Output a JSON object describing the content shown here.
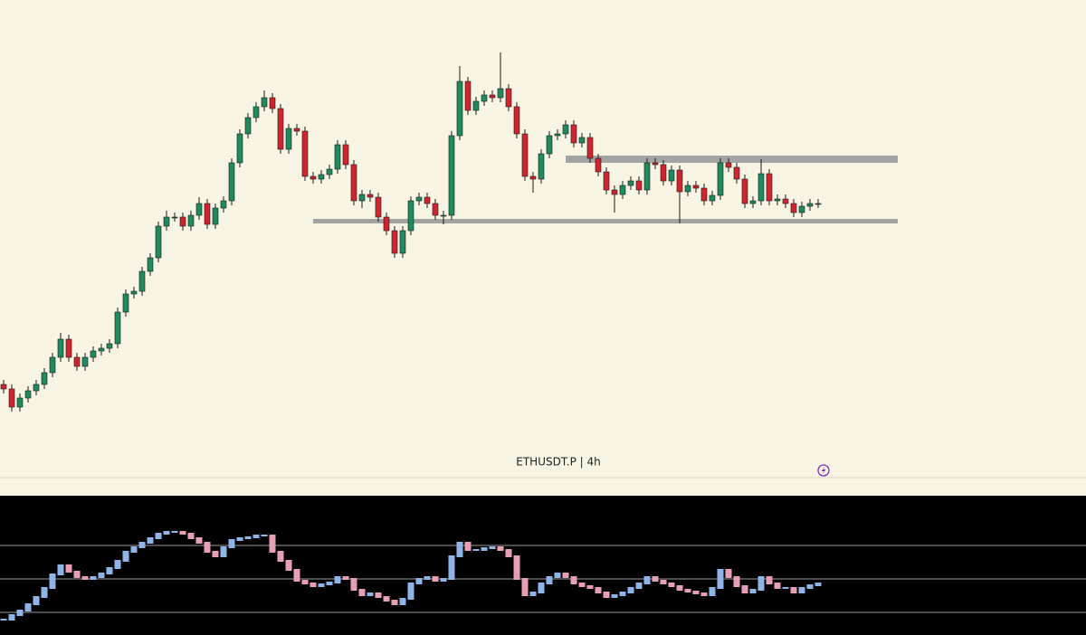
{
  "chart_data": [
    {
      "type": "candlestick",
      "title": "ETHUSDT.P | 4h",
      "ylim": [
        0,
        528
      ],
      "up_color": "#1f8a5e",
      "down_color": "#d0242e",
      "wick_color": "#1a1a1a",
      "zone_color": "#a3a3a3",
      "open": [
        103,
        98,
        78,
        88,
        96,
        103,
        116,
        133,
        153,
        133,
        123,
        133,
        140,
        143,
        148,
        183,
        203,
        206,
        228,
        243,
        278,
        288,
        288,
        278,
        290,
        303,
        280,
        298,
        306,
        348,
        380,
        398,
        410,
        420,
        408,
        363,
        386,
        383,
        333,
        330,
        335,
        341,
        368,
        346,
        306,
        313,
        310,
        288,
        273,
        248,
        273,
        306,
        310,
        303,
        290,
        290,
        378,
        438,
        406,
        416,
        423,
        420,
        430,
        410,
        380,
        333,
        330,
        358,
        378,
        380,
        390,
        370,
        376,
        353,
        338,
        318,
        313,
        323,
        328,
        318,
        348,
        346,
        328,
        340,
        316,
        323,
        320,
        306,
        312,
        348,
        343,
        330,
        303,
        306,
        336,
        306,
        308,
        303,
        293,
        300,
        303
      ],
      "high": [
        108,
        103,
        93,
        101,
        108,
        121,
        138,
        160,
        158,
        138,
        138,
        145,
        148,
        153,
        188,
        208,
        211,
        233,
        248,
        283,
        295,
        293,
        293,
        295,
        310,
        308,
        303,
        311,
        353,
        385,
        403,
        415,
        428,
        425,
        413,
        391,
        391,
        388,
        338,
        340,
        346,
        373,
        373,
        351,
        318,
        318,
        315,
        293,
        278,
        278,
        311,
        315,
        315,
        308,
        295,
        383,
        455,
        443,
        421,
        428,
        428,
        470,
        435,
        415,
        385,
        338,
        363,
        383,
        385,
        395,
        395,
        381,
        381,
        358,
        343,
        323,
        328,
        333,
        333,
        353,
        353,
        351,
        345,
        345,
        328,
        328,
        325,
        317,
        353,
        353,
        348,
        335,
        311,
        352,
        341,
        313,
        313,
        308,
        305,
        308,
        308
      ],
      "low": [
        93,
        73,
        73,
        83,
        91,
        98,
        111,
        128,
        128,
        118,
        118,
        128,
        135,
        138,
        143,
        178,
        198,
        201,
        223,
        238,
        273,
        283,
        273,
        273,
        285,
        275,
        275,
        293,
        301,
        343,
        375,
        393,
        405,
        403,
        358,
        358,
        378,
        328,
        325,
        325,
        330,
        336,
        341,
        301,
        298,
        305,
        283,
        268,
        243,
        243,
        268,
        301,
        298,
        285,
        280,
        285,
        373,
        401,
        401,
        411,
        415,
        415,
        405,
        375,
        328,
        315,
        325,
        353,
        373,
        375,
        365,
        365,
        348,
        333,
        313,
        293,
        308,
        318,
        313,
        313,
        341,
        323,
        323,
        281,
        311,
        315,
        301,
        301,
        307,
        338,
        325,
        298,
        298,
        301,
        301,
        301,
        298,
        288,
        288,
        295,
        298
      ],
      "close": [
        98,
        78,
        88,
        96,
        103,
        116,
        133,
        153,
        133,
        123,
        133,
        140,
        143,
        148,
        183,
        203,
        206,
        228,
        243,
        278,
        288,
        288,
        278,
        290,
        303,
        280,
        298,
        306,
        348,
        380,
        398,
        410,
        420,
        408,
        363,
        386,
        383,
        333,
        330,
        335,
        341,
        368,
        346,
        306,
        313,
        310,
        288,
        273,
        248,
        273,
        306,
        310,
        303,
        290,
        290,
        378,
        438,
        406,
        416,
        423,
        420,
        430,
        410,
        380,
        333,
        330,
        358,
        378,
        380,
        390,
        370,
        376,
        353,
        338,
        318,
        313,
        323,
        328,
        318,
        348,
        346,
        328,
        340,
        316,
        323,
        320,
        306,
        312,
        348,
        343,
        330,
        303,
        306,
        336,
        306,
        308,
        303,
        293,
        300,
        303,
        303
      ],
      "zones": [
        {
          "start": 69,
          "from": 348,
          "to": 356
        },
        {
          "start": 38,
          "from": 281,
          "to": 286
        }
      ]
    },
    {
      "type": "indicator",
      "ylim": [
        0,
        130
      ],
      "hlines": [
        97,
        60,
        23
      ],
      "hline_color": "#9a9a9a",
      "up_color": "#8fb4e8",
      "down_color": "#e89fb6",
      "values": [
        15,
        20,
        25,
        32,
        40,
        50,
        65,
        75,
        68,
        62,
        60,
        62,
        66,
        72,
        80,
        90,
        95,
        100,
        105,
        110,
        112,
        112,
        110,
        105,
        100,
        90,
        85,
        95,
        103,
        105,
        106,
        108,
        108,
        90,
        80,
        70,
        58,
        55,
        52,
        54,
        56,
        62,
        60,
        48,
        42,
        44,
        40,
        36,
        32,
        38,
        55,
        60,
        62,
        58,
        60,
        85,
        100,
        92,
        92,
        94,
        95,
        92,
        85,
        60,
        42,
        45,
        55,
        62,
        66,
        62,
        55,
        52,
        50,
        45,
        40,
        42,
        45,
        50,
        55,
        62,
        58,
        55,
        52,
        48,
        46,
        44,
        42,
        50,
        70,
        62,
        52,
        45,
        48,
        62,
        55,
        50,
        50,
        45,
        50,
        53,
        55
      ]
    }
  ]
}
